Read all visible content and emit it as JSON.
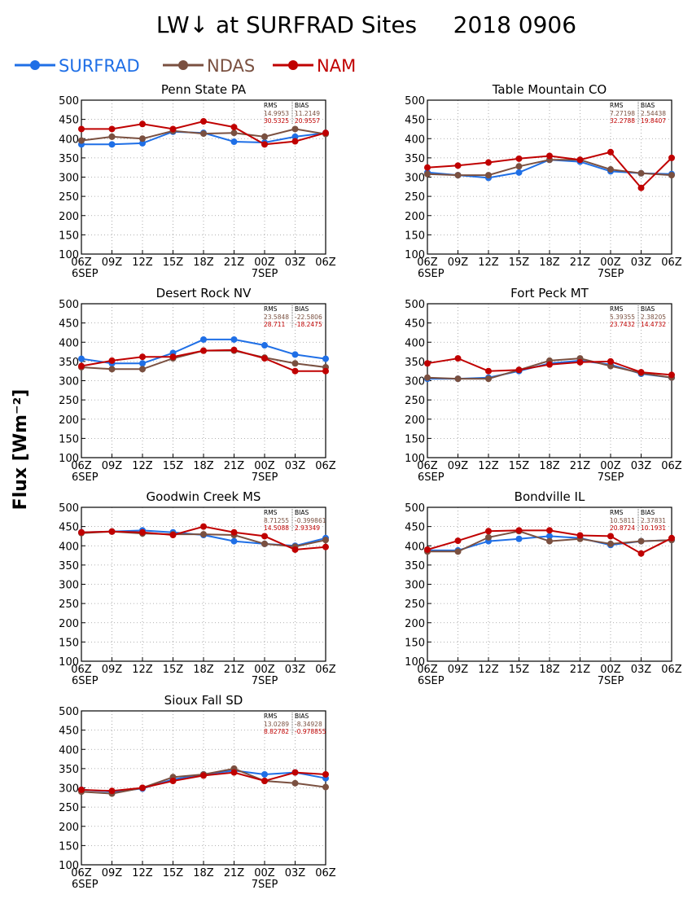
{
  "title": "LW↓ at SURFRAD Sites     2018 0906",
  "ylabel": "Flux [Wm⁻²]",
  "legend": [
    {
      "name": "SURFRAD",
      "color": "#1f6fe6"
    },
    {
      "name": "NDAS",
      "color": "#7a5040"
    },
    {
      "name": "NAM",
      "color": "#c00000"
    }
  ],
  "chart_data": [
    {
      "type": "line",
      "title": "Penn State PA",
      "x": [
        "06Z",
        "09Z",
        "12Z",
        "15Z",
        "18Z",
        "21Z",
        "00Z",
        "03Z",
        "06Z"
      ],
      "date_labels": [
        {
          "index": 0,
          "label": "6SEP"
        },
        {
          "index": 6,
          "label": "7SEP"
        }
      ],
      "ylim": [
        100,
        500
      ],
      "yticks": [
        100,
        150,
        200,
        250,
        300,
        350,
        400,
        450,
        500
      ],
      "grid": true,
      "stats": {
        "rms_label": "RMS",
        "bias_label": "BIAS",
        "ndas": {
          "rms": "14.9953",
          "bias": "11.2149"
        },
        "nam": {
          "rms": "30.5325",
          "bias": "20.9557"
        }
      },
      "series": [
        {
          "name": "SURFRAD",
          "values": [
            385,
            385,
            388,
            418,
            415,
            392,
            390,
            405,
            415
          ]
        },
        {
          "name": "NDAS",
          "values": [
            395,
            405,
            400,
            420,
            413,
            415,
            405,
            425,
            412
          ]
        },
        {
          "name": "NAM",
          "values": [
            425,
            425,
            438,
            425,
            445,
            430,
            385,
            393,
            415
          ]
        }
      ]
    },
    {
      "type": "line",
      "title": "Table Mountain CO",
      "x": [
        "06Z",
        "09Z",
        "12Z",
        "15Z",
        "18Z",
        "21Z",
        "00Z",
        "03Z",
        "06Z"
      ],
      "date_labels": [
        {
          "index": 0,
          "label": "6SEP"
        },
        {
          "index": 6,
          "label": "7SEP"
        }
      ],
      "ylim": [
        100,
        500
      ],
      "yticks": [
        100,
        150,
        200,
        250,
        300,
        350,
        400,
        450,
        500
      ],
      "grid": true,
      "stats": {
        "rms_label": "RMS",
        "bias_label": "BIAS",
        "ndas": {
          "rms": "7.27198",
          "bias": "2.54438"
        },
        "nam": {
          "rms": "32.2788",
          "bias": "19.8407"
        }
      },
      "series": [
        {
          "name": "SURFRAD",
          "values": [
            312,
            305,
            298,
            312,
            345,
            340,
            315,
            310,
            308
          ]
        },
        {
          "name": "NDAS",
          "values": [
            308,
            305,
            305,
            328,
            345,
            345,
            320,
            310,
            305
          ]
        },
        {
          "name": "NAM",
          "values": [
            325,
            330,
            338,
            348,
            355,
            345,
            365,
            272,
            350
          ]
        }
      ]
    },
    {
      "type": "line",
      "title": "Desert Rock NV",
      "x": [
        "06Z",
        "09Z",
        "12Z",
        "15Z",
        "18Z",
        "21Z",
        "00Z",
        "03Z",
        "06Z"
      ],
      "date_labels": [
        {
          "index": 0,
          "label": "6SEP"
        },
        {
          "index": 6,
          "label": "7SEP"
        }
      ],
      "ylim": [
        100,
        500
      ],
      "yticks": [
        100,
        150,
        200,
        250,
        300,
        350,
        400,
        450,
        500
      ],
      "grid": true,
      "stats": {
        "rms_label": "RMS",
        "bias_label": "BIAS",
        "ndas": {
          "rms": "23.5848",
          "bias": "-22.5806"
        },
        "nam": {
          "rms": "28.711",
          "bias": "-18.2475"
        }
      },
      "series": [
        {
          "name": "SURFRAD",
          "values": [
            357,
            345,
            345,
            372,
            407,
            407,
            392,
            368,
            357
          ]
        },
        {
          "name": "NDAS",
          "values": [
            335,
            330,
            330,
            358,
            378,
            378,
            360,
            345,
            335
          ]
        },
        {
          "name": "NAM",
          "values": [
            338,
            352,
            362,
            362,
            378,
            380,
            358,
            325,
            325
          ]
        }
      ]
    },
    {
      "type": "line",
      "title": "Fort Peck MT",
      "x": [
        "06Z",
        "09Z",
        "12Z",
        "15Z",
        "18Z",
        "21Z",
        "00Z",
        "03Z",
        "06Z"
      ],
      "date_labels": [
        {
          "index": 0,
          "label": "6SEP"
        },
        {
          "index": 6,
          "label": "7SEP"
        }
      ],
      "ylim": [
        100,
        500
      ],
      "yticks": [
        100,
        150,
        200,
        250,
        300,
        350,
        400,
        450,
        500
      ],
      "grid": true,
      "stats": {
        "rms_label": "RMS",
        "bias_label": "BIAS",
        "ndas": {
          "rms": "5.39355",
          "bias": "2.38205"
        },
        "nam": {
          "rms": "23.7432",
          "bias": "14.4732"
        }
      },
      "series": [
        {
          "name": "SURFRAD",
          "values": [
            305,
            305,
            308,
            325,
            345,
            352,
            342,
            318,
            308
          ]
        },
        {
          "name": "NDAS",
          "values": [
            308,
            305,
            305,
            328,
            352,
            358,
            338,
            320,
            308
          ]
        },
        {
          "name": "NAM",
          "values": [
            345,
            358,
            325,
            328,
            342,
            348,
            350,
            322,
            315
          ]
        }
      ]
    },
    {
      "type": "line",
      "title": "Goodwin Creek MS",
      "x": [
        "06Z",
        "09Z",
        "12Z",
        "15Z",
        "18Z",
        "21Z",
        "00Z",
        "03Z",
        "06Z"
      ],
      "date_labels": [
        {
          "index": 0,
          "label": "6SEP"
        },
        {
          "index": 6,
          "label": "7SEP"
        }
      ],
      "ylim": [
        100,
        500
      ],
      "yticks": [
        100,
        150,
        200,
        250,
        300,
        350,
        400,
        450,
        500
      ],
      "grid": true,
      "stats": {
        "rms_label": "RMS",
        "bias_label": "BIAS",
        "ndas": {
          "rms": "8.71255",
          "bias": "-0.399861"
        },
        "nam": {
          "rms": "14.5088",
          "bias": "2.93349"
        }
      },
      "series": [
        {
          "name": "SURFRAD",
          "values": [
            435,
            437,
            440,
            435,
            428,
            412,
            405,
            400,
            420
          ]
        },
        {
          "name": "NDAS",
          "values": [
            433,
            437,
            432,
            430,
            430,
            428,
            405,
            398,
            415
          ]
        },
        {
          "name": "NAM",
          "values": [
            435,
            437,
            435,
            428,
            450,
            435,
            425,
            390,
            397
          ]
        }
      ]
    },
    {
      "type": "line",
      "title": "Bondville IL",
      "x": [
        "06Z",
        "09Z",
        "12Z",
        "15Z",
        "18Z",
        "21Z",
        "00Z",
        "03Z",
        "06Z"
      ],
      "date_labels": [
        {
          "index": 0,
          "label": "6SEP"
        },
        {
          "index": 6,
          "label": "7SEP"
        }
      ],
      "ylim": [
        100,
        500
      ],
      "yticks": [
        100,
        150,
        200,
        250,
        300,
        350,
        400,
        450,
        500
      ],
      "grid": true,
      "stats": {
        "rms_label": "RMS",
        "bias_label": "BIAS",
        "ndas": {
          "rms": "10.5811",
          "bias": "2.37831"
        },
        "nam": {
          "rms": "20.8724",
          "bias": "10.1931"
        }
      },
      "series": [
        {
          "name": "SURFRAD",
          "values": [
            388,
            388,
            412,
            418,
            425,
            420,
            402,
            412,
            415
          ]
        },
        {
          "name": "NDAS",
          "values": [
            385,
            385,
            422,
            438,
            412,
            418,
            405,
            412,
            415
          ]
        },
        {
          "name": "NAM",
          "values": [
            390,
            413,
            438,
            440,
            440,
            427,
            425,
            380,
            420
          ]
        }
      ]
    },
    {
      "type": "line",
      "title": "Sioux Fall SD",
      "x": [
        "06Z",
        "09Z",
        "12Z",
        "15Z",
        "18Z",
        "21Z",
        "00Z",
        "03Z",
        "06Z"
      ],
      "date_labels": [
        {
          "index": 0,
          "label": "6SEP"
        },
        {
          "index": 6,
          "label": "7SEP"
        }
      ],
      "ylim": [
        100,
        500
      ],
      "yticks": [
        100,
        150,
        200,
        250,
        300,
        350,
        400,
        450,
        500
      ],
      "grid": true,
      "stats": {
        "rms_label": "RMS",
        "bias_label": "BIAS",
        "ndas": {
          "rms": "13.0289",
          "bias": "-8.34928"
        },
        "nam": {
          "rms": "8.82782",
          "bias": "-0.978855"
        }
      },
      "series": [
        {
          "name": "SURFRAD",
          "values": [
            295,
            290,
            298,
            322,
            335,
            345,
            335,
            340,
            325
          ]
        },
        {
          "name": "NDAS",
          "values": [
            290,
            285,
            300,
            328,
            335,
            350,
            318,
            312,
            302
          ]
        },
        {
          "name": "NAM",
          "values": [
            295,
            292,
            300,
            318,
            332,
            340,
            318,
            340,
            335
          ]
        }
      ]
    }
  ]
}
